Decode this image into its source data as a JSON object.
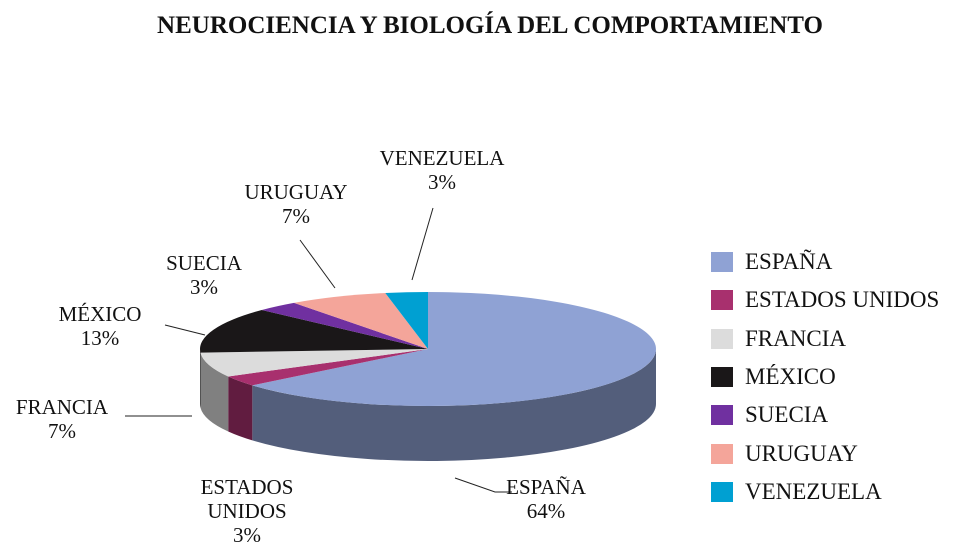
{
  "chart_data": {
    "type": "pie",
    "title": "NEUROCIENCIA Y BIOLOGÍA DEL COMPORTAMIENTO",
    "categories": [
      "ESPAÑA",
      "ESTADOS UNIDOS",
      "FRANCIA",
      "MÉXICO",
      "SUECIA",
      "URUGUAY",
      "VENEZUELA"
    ],
    "values": [
      64,
      3,
      7,
      13,
      3,
      7,
      3
    ],
    "value_labels": [
      "64%",
      "3%",
      "7%",
      "13%",
      "3%",
      "7%",
      "3%"
    ],
    "colors": [
      "#8fa2d4",
      "#a8306e",
      "#dcdcdc",
      "#1a1718",
      "#7030a0",
      "#f4a59a",
      "#00a0d2"
    ],
    "legend": "right"
  }
}
